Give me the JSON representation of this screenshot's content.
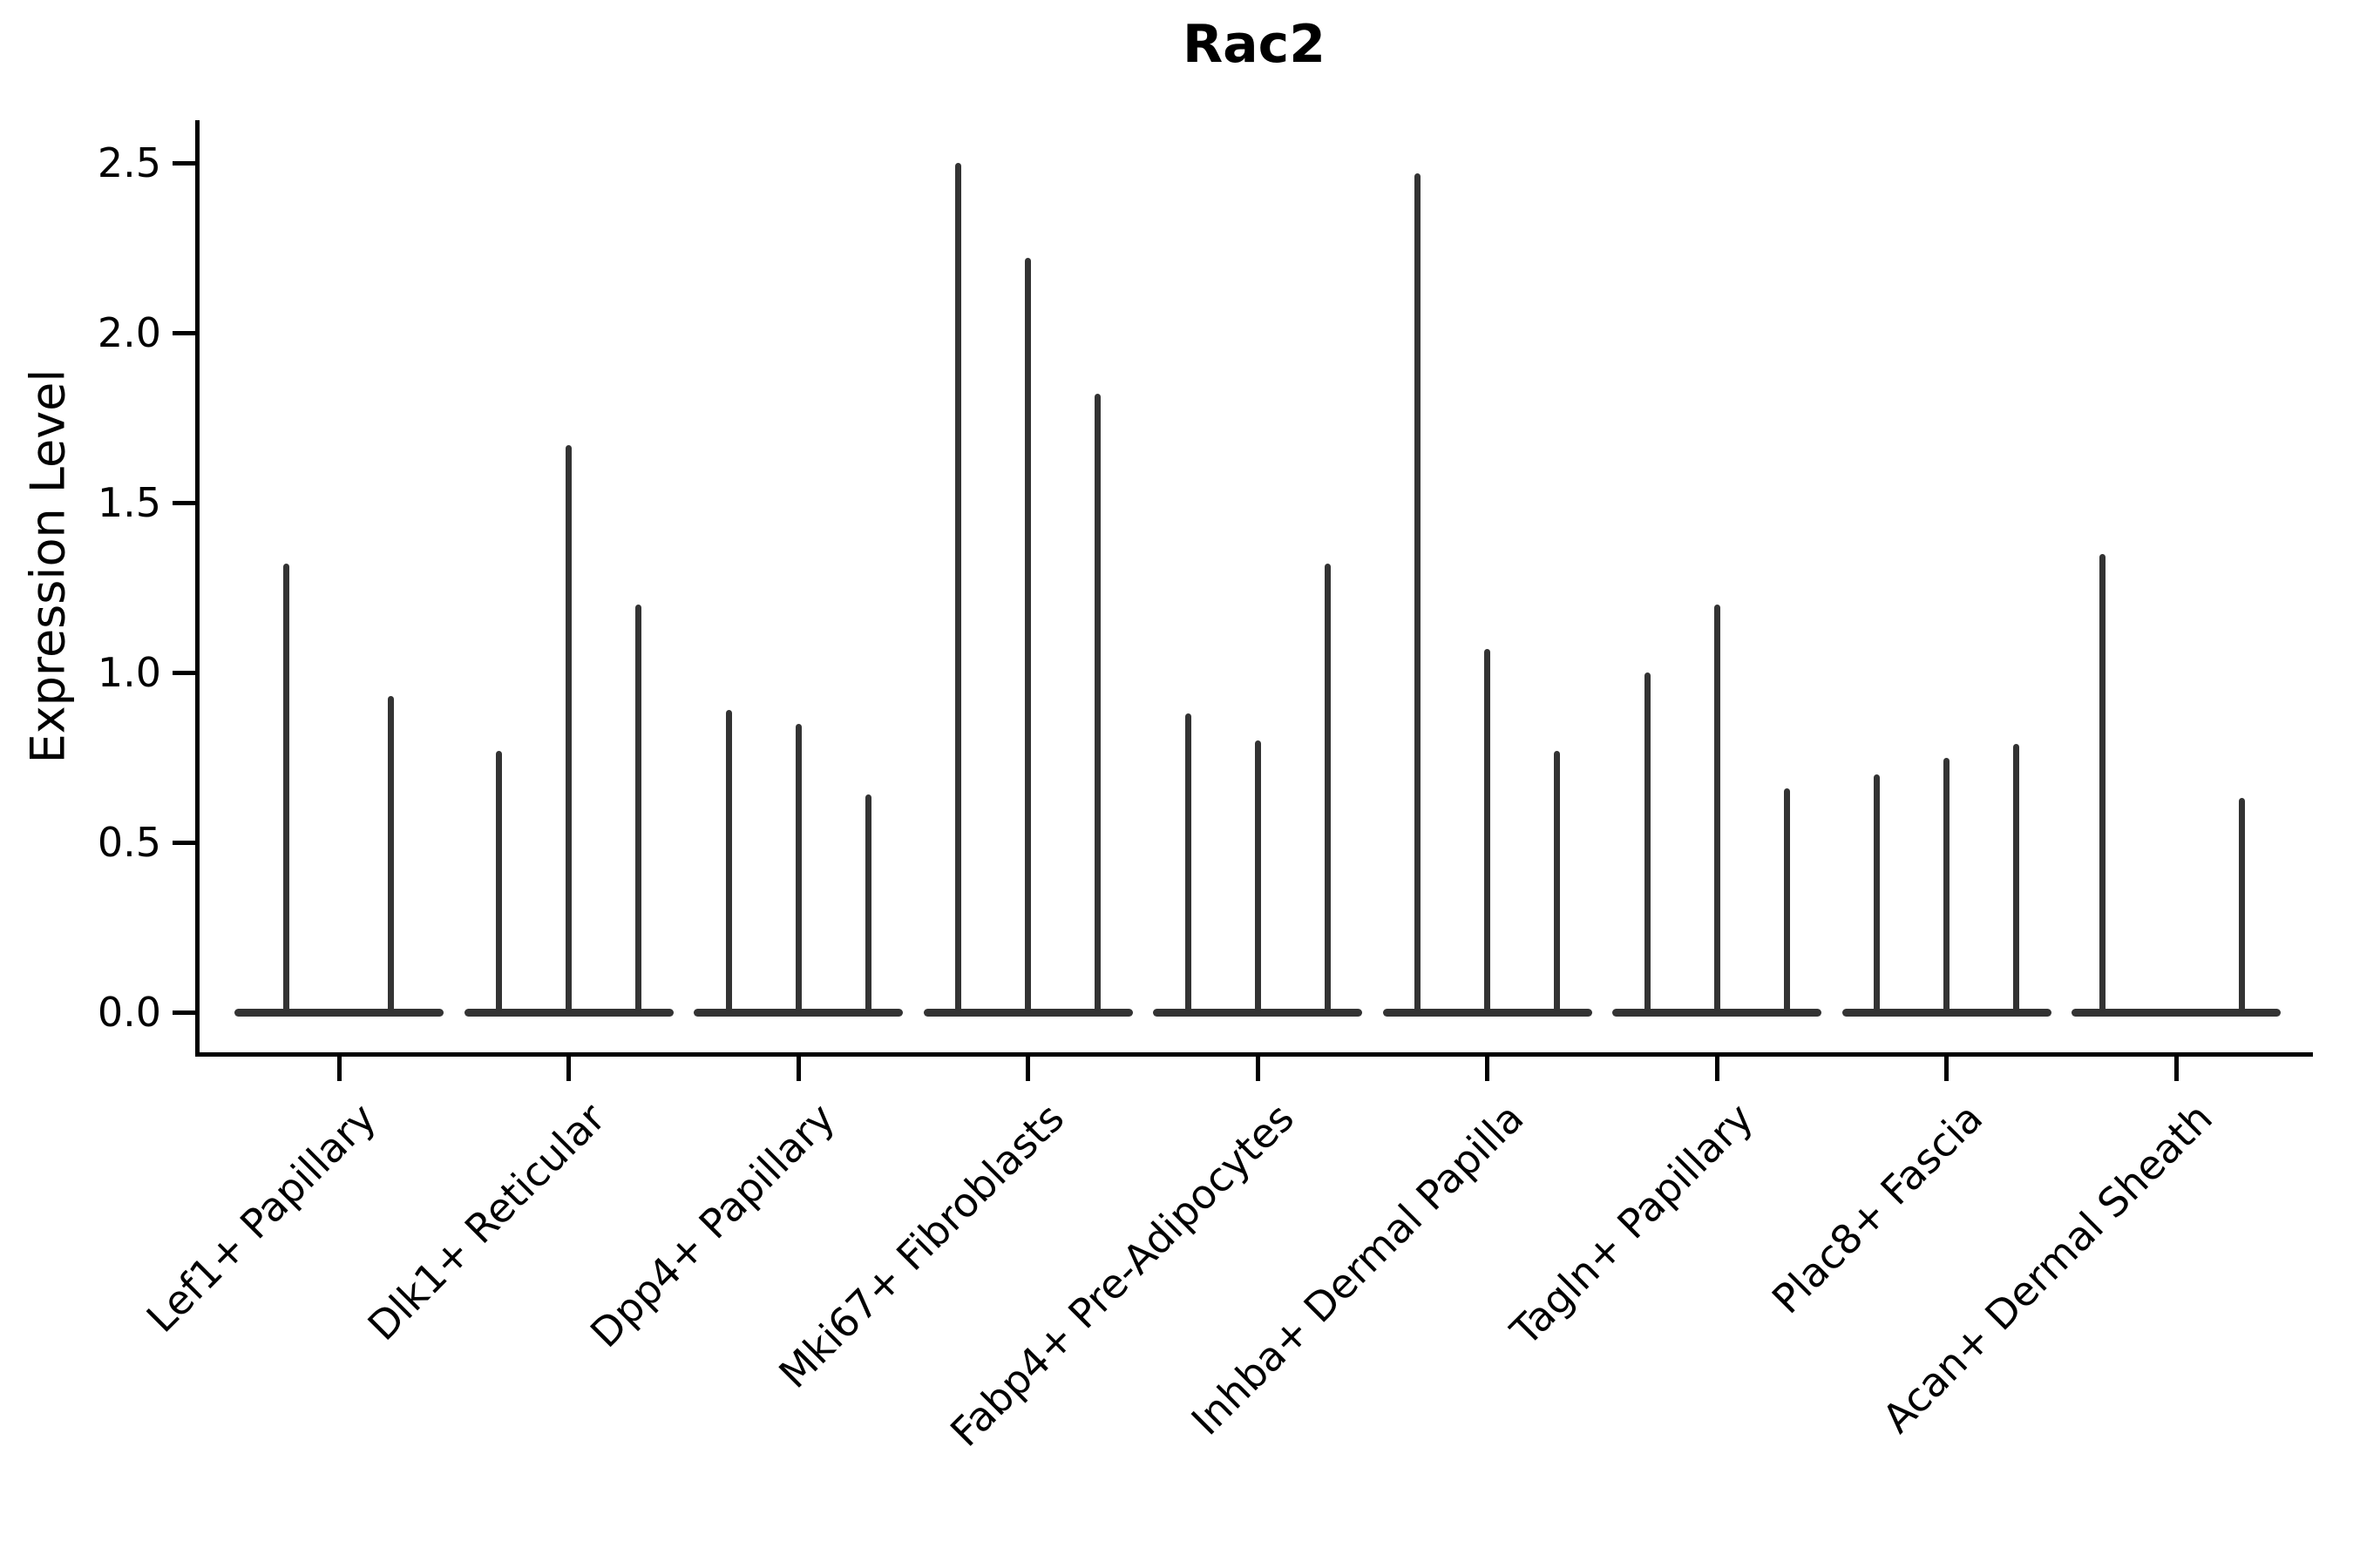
{
  "chart_data": {
    "type": "violin",
    "title": "Rac2",
    "ylabel": "Expression Level",
    "xlabel": "",
    "ylim": [
      -0.12,
      2.63
    ],
    "grid": false,
    "legend": "none",
    "y_ticks": {
      "labels": [
        "0.0",
        "0.5",
        "1.0",
        "1.5",
        "2.0",
        "2.5"
      ],
      "values": [
        0.0,
        0.5,
        1.0,
        1.5,
        2.0,
        2.5
      ]
    },
    "categories": [
      {
        "label": "Lef1+ Papillary",
        "peak_values": [
          1.32,
          0.93
        ],
        "x_offsets": [
          -61,
          59
        ]
      },
      {
        "label": "Dlk1+ Reticular",
        "peak_values": [
          0.77,
          1.67,
          1.2
        ],
        "x_offsets": [
          -80,
          0,
          80
        ]
      },
      {
        "label": "Dpp4+ Papillary",
        "peak_values": [
          0.89,
          0.85,
          0.64
        ],
        "x_offsets": [
          -80,
          0,
          80
        ]
      },
      {
        "label": "Mki67+ Fibroblasts",
        "peak_values": [
          2.5,
          2.22,
          1.82
        ],
        "x_offsets": [
          -80,
          0,
          80
        ]
      },
      {
        "label": "Fabp4+ Pre-Adipocytes",
        "peak_values": [
          0.88,
          0.8,
          1.32
        ],
        "x_offsets": [
          -80,
          0,
          80
        ]
      },
      {
        "label": "Inhba+ Dermal Papilla",
        "peak_values": [
          2.47,
          1.07,
          0.77
        ],
        "x_offsets": [
          -80,
          0,
          80
        ]
      },
      {
        "label": "Tagln+ Papillary",
        "peak_values": [
          1.0,
          1.2,
          0.66
        ],
        "x_offsets": [
          -80,
          0,
          80
        ]
      },
      {
        "label": "Plac8+ Fascia",
        "peak_values": [
          0.7,
          0.75,
          0.79
        ],
        "x_offsets": [
          -80,
          0,
          80
        ]
      },
      {
        "label": "Acan+ Dermal Sheath",
        "peak_values": [
          1.35,
          0.63
        ],
        "x_offsets": [
          -85,
          75
        ]
      }
    ],
    "colors": {
      "violin": "#333333",
      "axis": "#000000",
      "text": "#000000",
      "background": "#ffffff"
    }
  }
}
